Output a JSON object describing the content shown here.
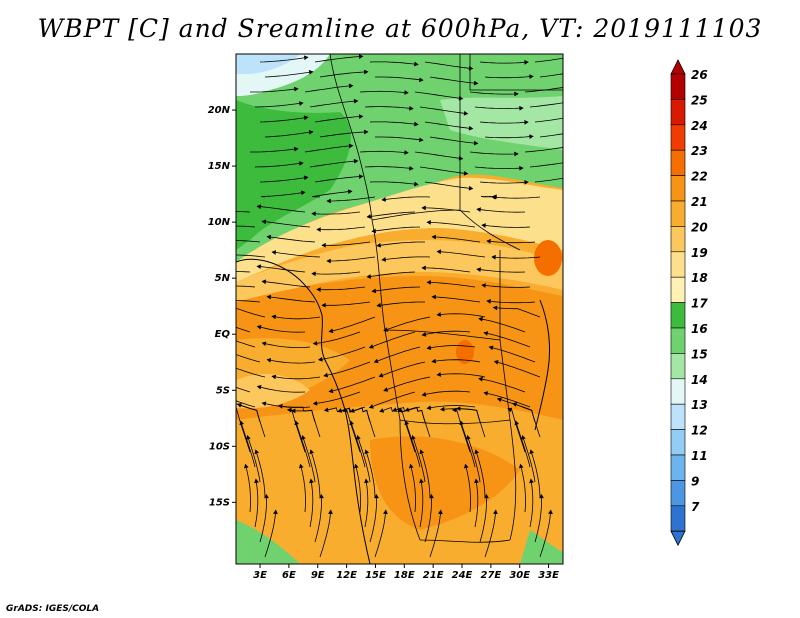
{
  "title": "WBPT [C] and Sreamline at 600hPa, VT: 2019111103",
  "credit": "GrADS: IGES/COLA",
  "map": {
    "lat_labels": [
      "20N",
      "15N",
      "10N",
      "5N",
      "EQ",
      "5S",
      "10S",
      "15S"
    ],
    "lat_values": [
      20,
      15,
      10,
      5,
      0,
      -5,
      -10,
      -15
    ],
    "lon_labels": [
      "3E",
      "6E",
      "9E",
      "12E",
      "15E",
      "18E",
      "21E",
      "24E",
      "27E",
      "30E",
      "33E"
    ],
    "lon_values": [
      3,
      6,
      9,
      12,
      15,
      18,
      21,
      24,
      27,
      30,
      33
    ],
    "lon_range": [
      0.5,
      34.5
    ],
    "lat_range": [
      -20.5,
      25
    ]
  },
  "colorbar": {
    "levels": [
      "26",
      "25",
      "24",
      "23",
      "22",
      "21",
      "20",
      "19",
      "18",
      "17",
      "16",
      "15",
      "14",
      "13",
      "12",
      "11",
      "9",
      "7"
    ],
    "colors": [
      "#b40000",
      "#d71a00",
      "#f03c00",
      "#f56e00",
      "#f79416",
      "#f9ad2e",
      "#fcc75c",
      "#fde08c",
      "#fff0b3",
      "#3dbb3d",
      "#6fd26f",
      "#a4e6a4",
      "#e3f7f7",
      "#bde3fb",
      "#93cdf6",
      "#6db4ee",
      "#4d96e3",
      "#2e73d2"
    ]
  }
}
